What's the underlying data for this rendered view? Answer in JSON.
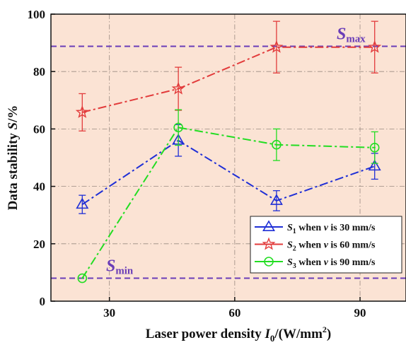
{
  "chart_data": {
    "type": "line",
    "title": "",
    "xlabel": {
      "main": "Laser power density ",
      "symbol": "I",
      "subscript": "0",
      "unit_open": "/(W/mm",
      "superscript": "2",
      "unit_close": ")"
    },
    "ylabel": {
      "main": "Data stability ",
      "symbol": "S",
      "unit": "/%"
    },
    "xlim": [
      16,
      101
    ],
    "ylim": [
      0,
      100
    ],
    "x_ticks": [
      30,
      60,
      90
    ],
    "y_ticks": [
      0,
      20,
      40,
      60,
      80,
      100
    ],
    "grid": true,
    "plot_background": "#fbe3d4",
    "legend_position": "lower-right",
    "reference_lines": [
      {
        "name": "S_max",
        "symbol": "S",
        "subscript": "max",
        "y": 88.8,
        "color": "#6a3db8"
      },
      {
        "name": "S_min",
        "symbol": "S",
        "subscript": "min",
        "y": 8.0,
        "color": "#6a3db8"
      }
    ],
    "series": [
      {
        "name": "S1",
        "legend": {
          "symbol": "S",
          "subscript": "1",
          "mid": " when ",
          "var": "v",
          "rest": " is 30 mm/s"
        },
        "color": "#1f2fd6",
        "marker": "triangle",
        "dash": "dashdot",
        "x": [
          23.5,
          46.5,
          70,
          93.5
        ],
        "y": [
          33.7,
          56.0,
          35.0,
          47.0
        ],
        "err": [
          3.2,
          5.5,
          3.5,
          4.5
        ]
      },
      {
        "name": "S2",
        "legend": {
          "symbol": "S",
          "subscript": "2",
          "mid": " when ",
          "var": "v",
          "rest": " is 60 mm/s"
        },
        "color": "#e23b3b",
        "marker": "star",
        "dash": "dashdot",
        "x": [
          23.5,
          46.5,
          70,
          93.5
        ],
        "y": [
          65.8,
          74.0,
          88.5,
          88.5
        ],
        "err": [
          6.5,
          7.5,
          9.0,
          9.0
        ]
      },
      {
        "name": "S3",
        "legend": {
          "symbol": "S",
          "subscript": "3",
          "mid": " when ",
          "var": "v",
          "rest": " is 90 mm/s"
        },
        "color": "#22dd22",
        "marker": "circle",
        "dash": "dashdot",
        "x": [
          23.5,
          46.5,
          70,
          93.5
        ],
        "y": [
          8.0,
          60.5,
          54.5,
          53.5
        ],
        "err": [
          0,
          6.2,
          5.5,
          5.5
        ]
      }
    ]
  }
}
